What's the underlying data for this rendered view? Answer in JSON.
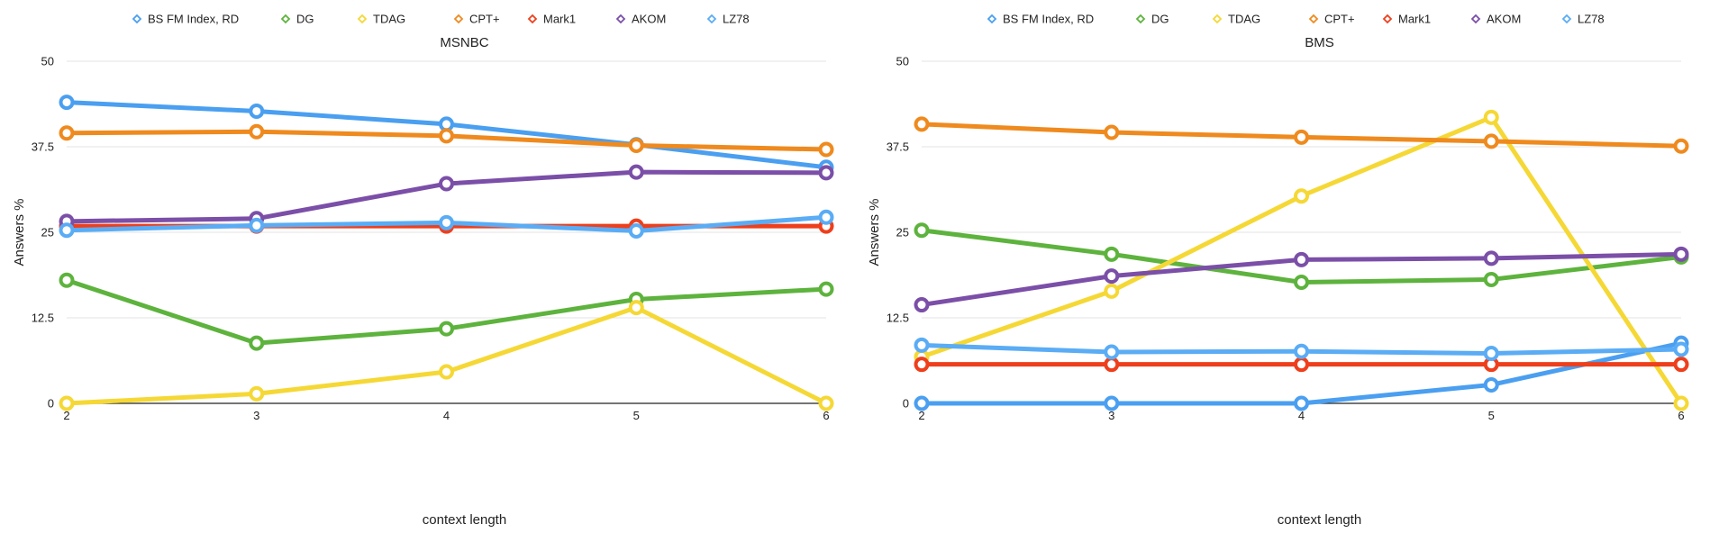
{
  "chart_data": [
    {
      "type": "line",
      "title": "MSNBC",
      "xlabel": "context length",
      "ylabel": "Answers %",
      "x": [
        2,
        3,
        4,
        5,
        6
      ],
      "ylim": [
        0,
        50
      ],
      "yticks": [
        0,
        12.5,
        25,
        37.5,
        50
      ],
      "grid": true,
      "legend_position": "top",
      "series": [
        {
          "name": "BS FM Index, RD",
          "color": "#4a9ff0",
          "values": [
            44,
            42.7,
            40.8,
            37.8,
            34.5
          ]
        },
        {
          "name": "DG",
          "color": "#5db33d",
          "values": [
            18,
            8.8,
            10.9,
            15.2,
            16.7
          ]
        },
        {
          "name": "TDAG",
          "color": "#f5d835",
          "values": [
            0,
            1.4,
            4.6,
            14,
            0
          ]
        },
        {
          "name": "CPT+",
          "color": "#ef8a1e",
          "values": [
            39.5,
            39.7,
            39.1,
            37.7,
            37.1
          ]
        },
        {
          "name": "Mark1",
          "color": "#ee3f1c",
          "values": [
            25.9,
            25.9,
            25.9,
            25.9,
            25.9
          ]
        },
        {
          "name": "AKOM",
          "color": "#7b4fa8",
          "values": [
            26.6,
            27,
            32.1,
            33.8,
            33.7
          ]
        },
        {
          "name": "LZ78",
          "color": "#5aacf5",
          "values": [
            25.3,
            26,
            26.4,
            25.2,
            27.2
          ]
        }
      ]
    },
    {
      "type": "line",
      "title": "BMS",
      "xlabel": "context length",
      "ylabel": "Answers %",
      "x": [
        2,
        3,
        4,
        5,
        6
      ],
      "ylim": [
        0,
        50
      ],
      "yticks": [
        0,
        12.5,
        25,
        37.5,
        50
      ],
      "grid": true,
      "legend_position": "top",
      "series": [
        {
          "name": "BS FM Index, RD",
          "color": "#4a9ff0",
          "values": [
            0,
            0,
            0,
            2.7,
            8.8
          ]
        },
        {
          "name": "DG",
          "color": "#5db33d",
          "values": [
            25.3,
            21.8,
            17.7,
            18.1,
            21.4
          ]
        },
        {
          "name": "TDAG",
          "color": "#f5d835",
          "values": [
            6.8,
            16.4,
            30.3,
            41.8,
            0
          ]
        },
        {
          "name": "CPT+",
          "color": "#ef8a1e",
          "values": [
            40.8,
            39.6,
            38.9,
            38.3,
            37.6
          ]
        },
        {
          "name": "Mark1",
          "color": "#ee3f1c",
          "values": [
            5.7,
            5.7,
            5.7,
            5.7,
            5.7
          ]
        },
        {
          "name": "AKOM",
          "color": "#7b4fa8",
          "values": [
            14.4,
            18.6,
            21,
            21.2,
            21.8
          ]
        },
        {
          "name": "LZ78",
          "color": "#5aacf5",
          "values": [
            8.5,
            7.5,
            7.6,
            7.3,
            7.9
          ]
        }
      ]
    }
  ]
}
